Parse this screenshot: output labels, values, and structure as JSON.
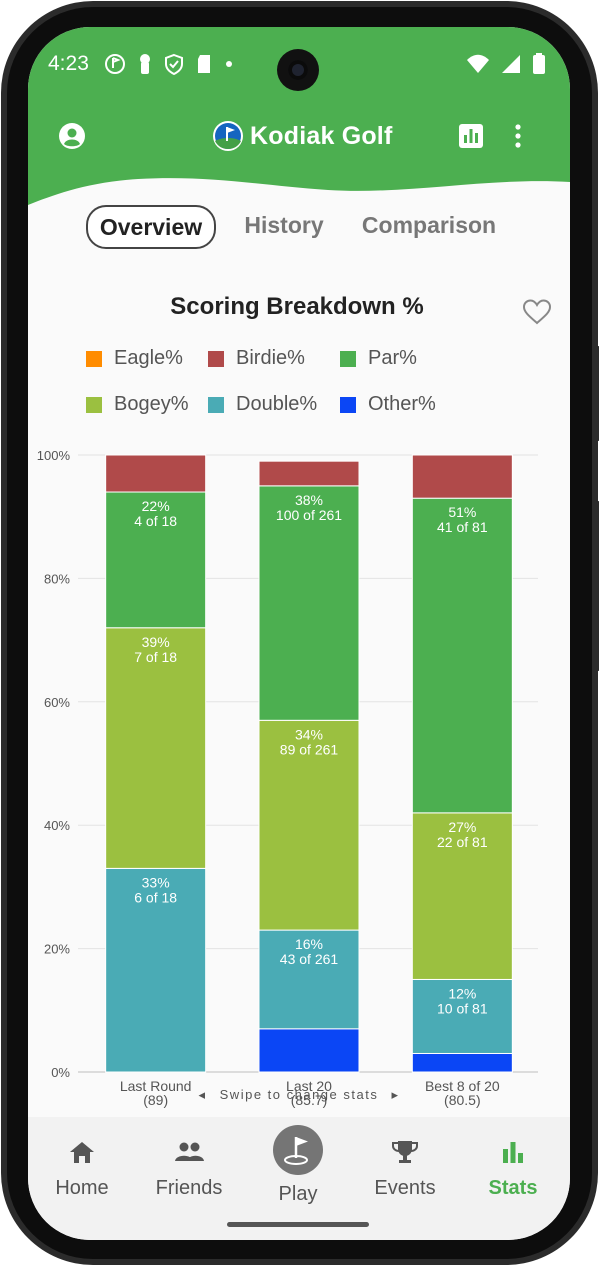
{
  "status": {
    "time": "4:23"
  },
  "app": {
    "title": "Kodiak Golf",
    "brand_color": "#4caf50"
  },
  "tabs": [
    {
      "label": "Overview",
      "active": true
    },
    {
      "label": "History",
      "active": false
    },
    {
      "label": "Comparison",
      "active": false
    }
  ],
  "chart_card": {
    "title": "Scoring Breakdown %"
  },
  "swipe_hint": "Swipe to change stats",
  "nav": [
    {
      "label": "Home",
      "icon": "home-icon"
    },
    {
      "label": "Friends",
      "icon": "friends-icon"
    },
    {
      "label": "Play",
      "icon": "golf-flag-icon"
    },
    {
      "label": "Events",
      "icon": "trophy-icon"
    },
    {
      "label": "Stats",
      "icon": "bar-chart-icon",
      "active": true
    }
  ],
  "chart_data": {
    "type": "bar",
    "stacked": true,
    "title": "Scoring Breakdown %",
    "categories": [
      "Last Round",
      "Last 20",
      "Best 8 of 20"
    ],
    "category_sublabels": [
      "(89)",
      "(85.7)",
      "(80.5)"
    ],
    "ylim": [
      0,
      100
    ],
    "yticks": [
      "0%",
      "20%",
      "40%",
      "60%",
      "80%",
      "100%"
    ],
    "grid": true,
    "legend_position": "top",
    "series": [
      {
        "name": "Eagle%",
        "color": "#ff8c00",
        "values": [
          0,
          0,
          0
        ],
        "labels": [
          "",
          "",
          ""
        ]
      },
      {
        "name": "Birdie%",
        "color": "#b04a4a",
        "values": [
          6,
          4,
          7
        ],
        "labels": [
          "",
          "",
          ""
        ]
      },
      {
        "name": "Par%",
        "color": "#4caf50",
        "values": [
          22,
          38,
          51
        ],
        "labels": [
          "22%\n4 of 18",
          "38%\n100 of 261",
          "51%\n41 of 81"
        ]
      },
      {
        "name": "Bogey%",
        "color": "#9bc040",
        "values": [
          39,
          34,
          27
        ],
        "labels": [
          "39%\n7 of 18",
          "34%\n89 of 261",
          "27%\n22 of 81"
        ]
      },
      {
        "name": "Double%",
        "color": "#4aabb5",
        "values": [
          33,
          16,
          12
        ],
        "labels": [
          "33%\n6 of 18",
          "16%\n43 of 261",
          "12%\n10 of 81"
        ]
      },
      {
        "name": "Other%",
        "color": "#0b46f5",
        "values": [
          0,
          7,
          3
        ],
        "labels": [
          "",
          "",
          ""
        ]
      }
    ],
    "stack_order_bottom_to_top": [
      "Other%",
      "Double%",
      "Bogey%",
      "Par%",
      "Birdie%",
      "Eagle%"
    ]
  }
}
